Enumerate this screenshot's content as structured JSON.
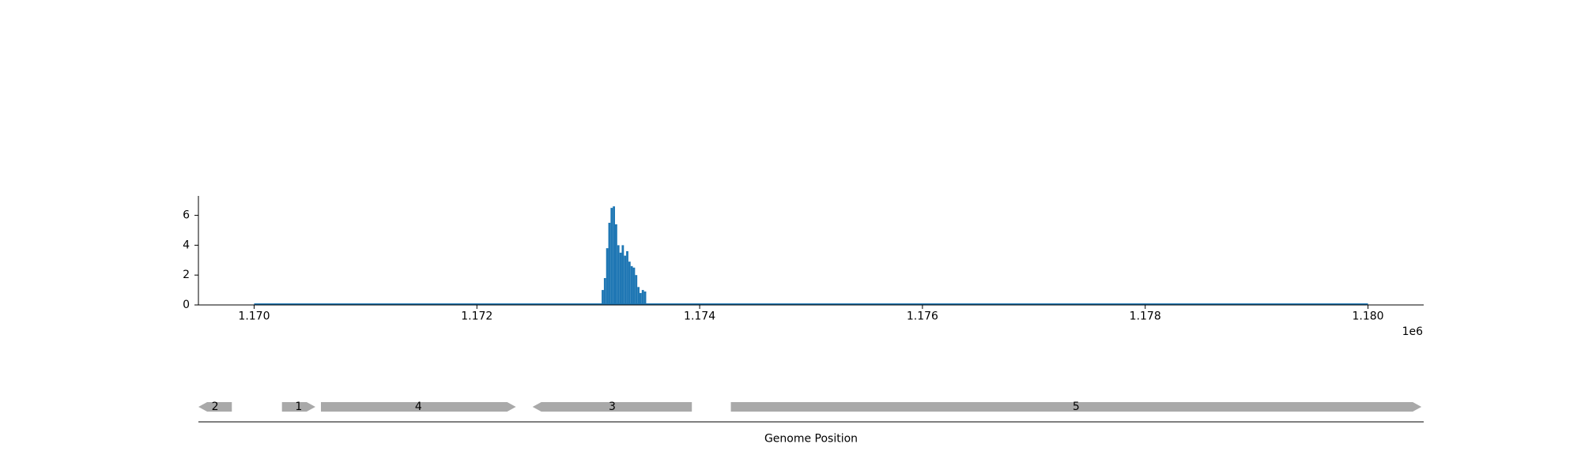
{
  "chart_data": [
    {
      "type": "bar",
      "title": "",
      "xlabel": "",
      "ylabel": "",
      "xlim": [
        1169500,
        1180500
      ],
      "ylim": [
        0,
        7.3
      ],
      "xticks": [
        1170000,
        1172000,
        1174000,
        1176000,
        1178000,
        1180000
      ],
      "xtick_labels": [
        "1.170",
        "1.172",
        "1.174",
        "1.176",
        "1.178",
        "1.180"
      ],
      "x_offset_label": "1e6",
      "yticks": [
        0,
        2,
        4,
        6
      ],
      "ytick_labels": [
        "0",
        "2",
        "4",
        "6"
      ],
      "baseline_range": [
        1170000,
        1180000
      ],
      "coverage": {
        "x": [
          1173120,
          1173140,
          1173160,
          1173180,
          1173200,
          1173220,
          1173240,
          1173260,
          1173280,
          1173300,
          1173320,
          1173340,
          1173360,
          1173380,
          1173400,
          1173420,
          1173440,
          1173460,
          1173480,
          1173500
        ],
        "values": [
          1.0,
          1.8,
          3.8,
          5.5,
          6.5,
          6.6,
          5.4,
          4.0,
          3.5,
          4.0,
          3.3,
          3.6,
          2.9,
          2.6,
          2.5,
          2.0,
          1.2,
          0.8,
          1.0,
          0.9
        ]
      },
      "bar_color": "#1f77b4"
    },
    {
      "type": "gene_track",
      "xlabel": "Genome Position",
      "genes": [
        {
          "label": "2",
          "start": 1169500,
          "end": 1169800,
          "strand": "-"
        },
        {
          "label": "1",
          "start": 1170250,
          "end": 1170550,
          "strand": "+"
        },
        {
          "label": "4",
          "start": 1170600,
          "end": 1172350,
          "strand": "+"
        },
        {
          "label": "3",
          "start": 1172500,
          "end": 1173930,
          "strand": "-"
        },
        {
          "label": "5",
          "start": 1174280,
          "end": 1180480,
          "strand": "+"
        }
      ],
      "gene_color": "#a9a9a9"
    }
  ]
}
